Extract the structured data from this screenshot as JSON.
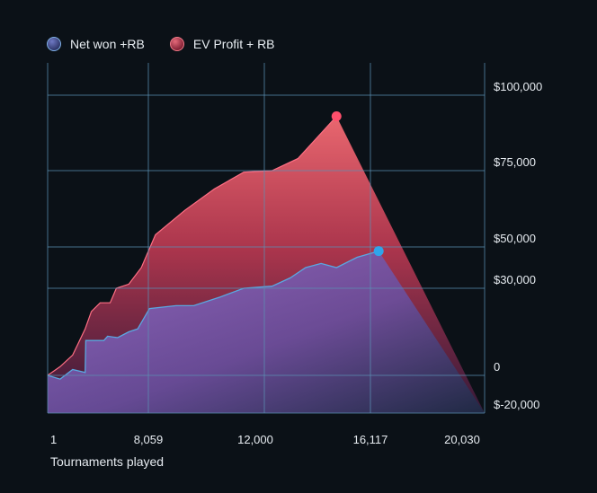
{
  "legend": {
    "net_label": "Net won +RB",
    "ev_label": "EV Profit + RB"
  },
  "colors": {
    "background": "#0b1117",
    "grid": "#5b8fb3",
    "net_fill_top": "#8e6ac4",
    "net_fill_bottom": "#1e2a44",
    "net_line": "#5aa7e0",
    "ev_fill_top": "#e9676f",
    "ev_fill_bottom": "#3a1a3c",
    "ev_line": "#ff6f84",
    "net_end_dot": "#2fa5ea",
    "ev_end_dot": "#ff4f6c"
  },
  "chart_data": {
    "type": "area",
    "title": "",
    "xlabel": "Tournaments played",
    "ylabel": "",
    "x_ticks": [
      {
        "value": 1,
        "label": "1"
      },
      {
        "value": 8059,
        "label": "8,059"
      },
      {
        "value": 12000,
        "label": "12,000"
      },
      {
        "value": 16117,
        "label": "16,117"
      },
      {
        "value": 20030,
        "label": "20,030"
      }
    ],
    "y_ticks": [
      {
        "label": "$100,000"
      },
      {
        "label": "$75,000"
      },
      {
        "label": "$50,000"
      },
      {
        "label": "$30,000"
      },
      {
        "label": "0"
      },
      {
        "label": "$-20,000"
      }
    ],
    "grid": true,
    "legend_position": "top-left",
    "series": [
      {
        "name": "Net won +RB",
        "points": [
          [
            1,
            0
          ],
          [
            1000,
            -2000
          ],
          [
            2000,
            2000
          ],
          [
            3000,
            1000
          ],
          [
            3050,
            12000
          ],
          [
            4000,
            12000
          ],
          [
            4500,
            12000
          ],
          [
            4800,
            13500
          ],
          [
            5600,
            13000
          ],
          [
            6500,
            15000
          ],
          [
            7200,
            16000
          ],
          [
            8100,
            23000
          ],
          [
            9000,
            24000
          ],
          [
            9600,
            24000
          ],
          [
            10500,
            27000
          ],
          [
            11300,
            30000
          ],
          [
            12300,
            31000
          ],
          [
            13000,
            35000
          ],
          [
            13600,
            40000
          ],
          [
            14200,
            42000
          ],
          [
            14800,
            40000
          ],
          [
            15600,
            45000
          ],
          [
            16400,
            48000
          ]
        ]
      },
      {
        "name": "EV Profit + RB",
        "points": [
          [
            1,
            0
          ],
          [
            1000,
            3000
          ],
          [
            2000,
            7000
          ],
          [
            3000,
            16000
          ],
          [
            3500,
            22000
          ],
          [
            4200,
            25000
          ],
          [
            5000,
            25000
          ],
          [
            5500,
            30000
          ],
          [
            6500,
            32000
          ],
          [
            7500,
            40000
          ],
          [
            8300,
            54000
          ],
          [
            9300,
            62000
          ],
          [
            10300,
            69000
          ],
          [
            11300,
            74500
          ],
          [
            12300,
            75000
          ],
          [
            13300,
            79000
          ],
          [
            14800,
            93000
          ]
        ]
      }
    ]
  }
}
